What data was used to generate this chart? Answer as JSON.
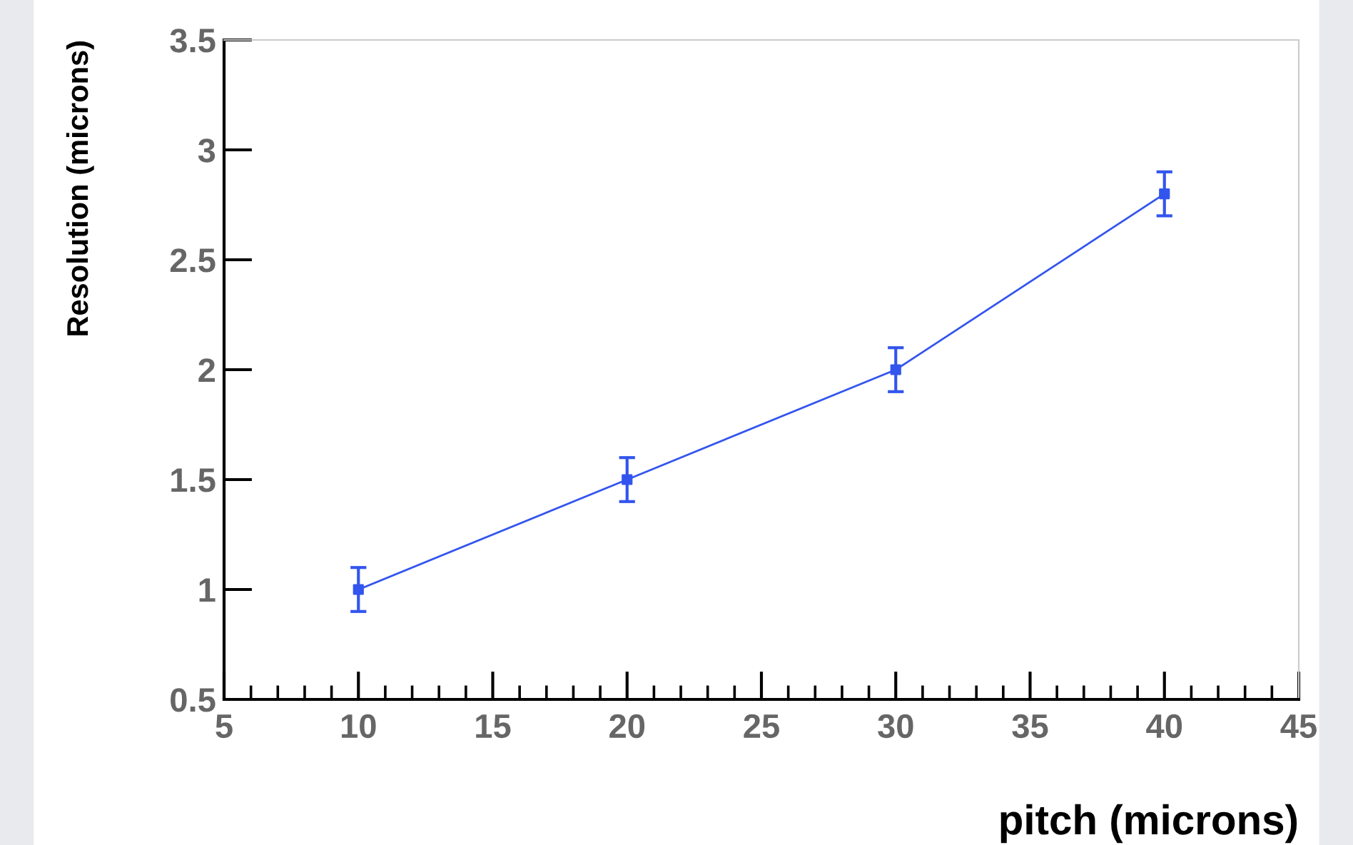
{
  "chart_data": {
    "type": "line",
    "xlabel": "pitch (microns)",
    "ylabel": "Resolution (microns)",
    "x": [
      10,
      20,
      30,
      40
    ],
    "series": [
      {
        "color": "#3355ee",
        "values": [
          1.0,
          1.5,
          2.0,
          2.8
        ],
        "errors": [
          0.1,
          0.1,
          0.1,
          0.1
        ]
      }
    ],
    "marker": "square",
    "line_style": "solid",
    "grid": false,
    "legend": false,
    "xlim": [
      5,
      45
    ],
    "ylim": [
      0.5,
      3.5
    ],
    "xticks": [
      5,
      10,
      15,
      20,
      25,
      30,
      35,
      40,
      45
    ],
    "yticks": [
      0.5,
      1,
      1.5,
      2,
      2.5,
      3,
      3.5
    ]
  }
}
